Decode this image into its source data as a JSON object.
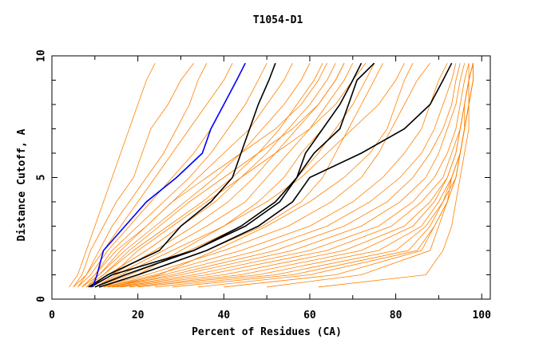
{
  "chart_data": {
    "type": "line",
    "title": "T1054-D1",
    "xlabel": "Percent of Residues (CA)",
    "ylabel": "Distance Cutoff, A",
    "xlim": [
      0,
      102
    ],
    "ylim": [
      0,
      10
    ],
    "x_ticks": [
      0,
      20,
      40,
      60,
      80,
      100
    ],
    "y_ticks": [
      0,
      5,
      10
    ],
    "grid": false,
    "y_levels": [
      0.5,
      1,
      2,
      3,
      4,
      5,
      6,
      7,
      8,
      9,
      9.7
    ],
    "colors": {
      "other": "#ff8000",
      "highlight": "#0000ff",
      "reference": "#000000"
    },
    "series_other": [
      [
        4,
        6,
        8,
        10,
        12,
        14,
        16,
        18,
        20,
        22,
        24
      ],
      [
        5,
        7,
        9,
        12,
        15,
        19,
        21,
        23,
        27,
        30,
        33
      ],
      [
        5,
        8,
        11,
        14,
        18,
        22,
        26,
        29,
        32,
        34,
        36
      ],
      [
        6,
        8,
        12,
        16,
        20,
        24,
        28,
        32,
        36,
        40,
        42
      ],
      [
        6,
        9,
        13,
        18,
        23,
        28,
        33,
        37,
        40,
        43,
        45
      ],
      [
        7,
        10,
        14,
        20,
        26,
        32,
        37,
        41,
        45,
        48,
        50
      ],
      [
        7,
        10,
        15,
        22,
        28,
        34,
        40,
        46,
        50,
        54,
        56
      ],
      [
        8,
        11,
        17,
        24,
        31,
        38,
        44,
        49,
        54,
        58,
        60
      ],
      [
        8,
        12,
        19,
        27,
        35,
        42,
        48,
        53,
        57,
        61,
        63
      ],
      [
        9,
        13,
        22,
        30,
        38,
        44,
        50,
        55,
        60,
        64,
        66
      ],
      [
        9,
        14,
        24,
        33,
        41,
        47,
        52,
        57,
        62,
        66,
        68
      ],
      [
        10,
        15,
        26,
        36,
        45,
        50,
        55,
        60,
        64,
        68,
        70
      ],
      [
        10,
        16,
        28,
        40,
        48,
        54,
        58,
        63,
        67,
        70,
        73
      ],
      [
        10,
        18,
        32,
        44,
        52,
        57,
        62,
        66,
        70,
        73,
        75
      ],
      [
        11,
        20,
        36,
        49,
        58,
        63,
        66,
        69,
        72,
        75,
        77
      ],
      [
        11,
        22,
        40,
        55,
        65,
        72,
        76,
        79,
        82,
        85,
        88
      ],
      [
        12,
        24,
        44,
        60,
        70,
        77,
        82,
        86,
        88,
        90,
        92
      ],
      [
        12,
        26,
        48,
        64,
        74,
        81,
        86,
        89,
        91,
        93,
        94
      ],
      [
        13,
        28,
        52,
        68,
        78,
        84,
        88,
        91,
        93,
        94,
        95
      ],
      [
        13,
        30,
        56,
        72,
        81,
        87,
        90,
        92,
        94,
        95,
        96
      ],
      [
        14,
        33,
        60,
        76,
        84,
        89,
        92,
        94,
        95,
        96,
        97
      ],
      [
        15,
        36,
        64,
        79,
        86,
        91,
        93,
        95,
        96,
        97,
        98
      ],
      [
        16,
        40,
        68,
        82,
        88,
        92,
        94,
        95,
        96,
        97,
        98
      ],
      [
        18,
        44,
        72,
        84,
        89,
        92,
        94,
        95,
        96,
        97,
        97
      ],
      [
        20,
        48,
        76,
        86,
        90,
        93,
        95,
        96,
        97,
        98,
        98
      ],
      [
        24,
        52,
        80,
        87,
        91,
        93,
        95,
        96,
        97,
        97,
        98
      ],
      [
        28,
        56,
        83,
        88,
        91,
        94,
        95,
        96,
        97,
        98,
        98
      ],
      [
        34,
        60,
        85,
        89,
        92,
        94,
        95,
        96,
        97,
        97,
        98
      ],
      [
        40,
        66,
        86,
        89,
        92,
        93,
        95,
        96,
        96,
        97,
        98
      ],
      [
        50,
        72,
        88,
        90,
        92,
        94,
        95,
        96,
        97,
        98,
        98
      ],
      [
        62,
        87,
        91,
        93,
        94,
        95,
        96,
        97,
        97,
        98,
        98
      ],
      [
        14,
        25,
        38,
        50,
        60,
        68,
        74,
        78,
        80,
        82,
        84
      ],
      [
        12,
        20,
        30,
        40,
        50,
        58,
        64,
        70,
        76,
        80,
        82
      ],
      [
        9,
        14,
        20,
        28,
        36,
        44,
        52,
        60,
        66,
        70,
        72
      ],
      [
        8,
        12,
        18,
        25,
        32,
        40,
        48,
        56,
        62,
        66,
        68
      ],
      [
        7,
        11,
        16,
        22,
        28,
        36,
        44,
        52,
        58,
        62,
        64
      ]
    ],
    "series_highlight": {
      "name": "blue",
      "x": [
        9.5,
        10.5,
        12,
        17,
        22,
        29,
        35,
        37,
        40,
        43,
        45
      ]
    },
    "series_reference": [
      {
        "x": [
          8.5,
          13,
          25,
          30,
          37,
          42,
          44,
          46,
          48,
          50.5,
          52
        ]
      },
      {
        "x": [
          9,
          14,
          33,
          45,
          53,
          57,
          59,
          63,
          67,
          70,
          72
        ]
      },
      {
        "x": [
          10,
          17,
          33,
          44,
          52,
          57,
          61,
          67,
          69,
          71,
          75
        ]
      },
      {
        "x": [
          11,
          20,
          36,
          48,
          56,
          60,
          72,
          82,
          88,
          91,
          93
        ]
      }
    ]
  }
}
